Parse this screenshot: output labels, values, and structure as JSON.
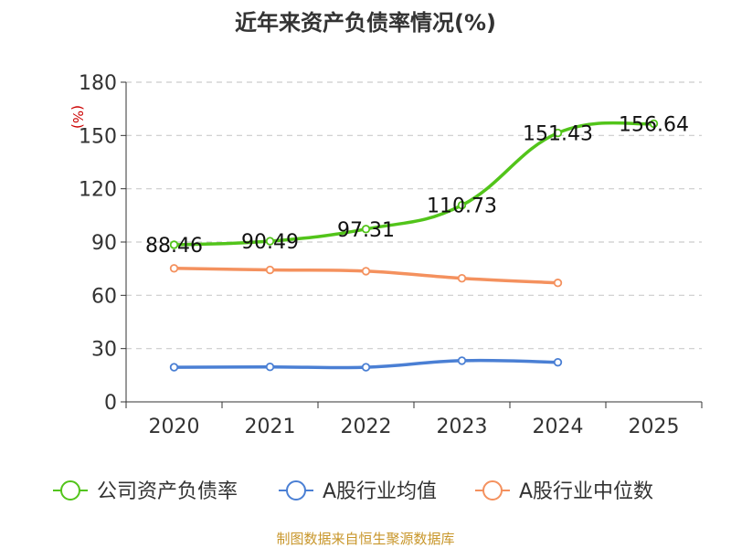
{
  "chart_data": {
    "type": "line",
    "title": "近年来资产负债率情况(%)",
    "ylabel": "(%)",
    "xlabel": "",
    "categories": [
      "2020",
      "2021",
      "2022",
      "2023",
      "2024",
      "2025"
    ],
    "ylim": [
      0,
      180
    ],
    "yticks": [
      0,
      30,
      60,
      90,
      120,
      150,
      180
    ],
    "grid": true,
    "legend_position": "bottom",
    "series": [
      {
        "name": "公司资产负债率",
        "color": "#52c41a",
        "values": [
          88.46,
          90.49,
          97.31,
          110.73,
          151.43,
          156.64
        ],
        "labels": [
          "88.46",
          "90.49",
          "97.31",
          "110.73",
          "151.43",
          "156.64"
        ]
      },
      {
        "name": "A股行业均值",
        "color": "#4a7fd4",
        "values": [
          19.5,
          19.7,
          19.5,
          23.2,
          22.3,
          null
        ]
      },
      {
        "name": "A股行业中位数",
        "color": "#f4915e",
        "values": [
          75.2,
          74.3,
          73.6,
          69.6,
          67.0,
          null
        ]
      }
    ]
  },
  "footer": "制图数据来自恒生聚源数据库"
}
